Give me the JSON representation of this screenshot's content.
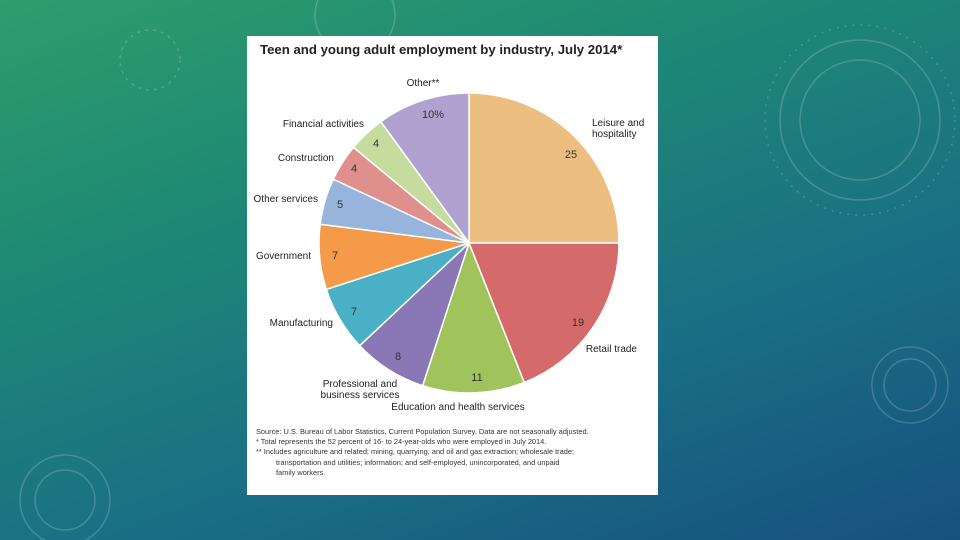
{
  "chart_data": {
    "type": "pie",
    "title": "Teen and young adult employment by industry, July 2014*",
    "unit": "percent",
    "slices": [
      {
        "label": "Leisure and hospitality",
        "value": 25,
        "display": "25",
        "color": "#ecbf80"
      },
      {
        "label": "Retail trade",
        "value": 19,
        "display": "19",
        "color": "#d46a6a"
      },
      {
        "label": "Education and health services",
        "value": 11,
        "display": "11",
        "color": "#a0c35c"
      },
      {
        "label": "Professional and business services",
        "value": 8,
        "display": "8",
        "color": "#8a78b6"
      },
      {
        "label": "Manufacturing",
        "value": 7,
        "display": "7",
        "color": "#4ab0c6"
      },
      {
        "label": "Government",
        "value": 7,
        "display": "7",
        "color": "#f49a48"
      },
      {
        "label": "Other services",
        "value": 5,
        "display": "5",
        "color": "#96b4dc"
      },
      {
        "label": "Construction",
        "value": 4,
        "display": "4",
        "color": "#e0908c"
      },
      {
        "label": "Financial activities",
        "value": 4,
        "display": "4",
        "color": "#c6dc9e"
      },
      {
        "label": "Other**",
        "value": 10,
        "display": "10%",
        "color": "#b0a2d0"
      }
    ]
  },
  "notes": {
    "source": "Source: U.S. Bureau of Labor Statistics, Current Population Survey. Data are not seasonally adjusted.",
    "footnote1": "* Total represents the 52 percent of 16- to 24-year-olds who were employed in July 2014.",
    "footnote2a": "** Includes agriculture and related; mining, quarrying, and oil and gas extraction; wholesale trade;",
    "footnote2b": "transportation and utilities; information; and self-employed, unincorporated, and unpaid",
    "footnote2c": "family workers."
  },
  "colors": {
    "background_top": "#2f9d6c",
    "background_bottom": "#17507e",
    "card": "#ffffff"
  }
}
